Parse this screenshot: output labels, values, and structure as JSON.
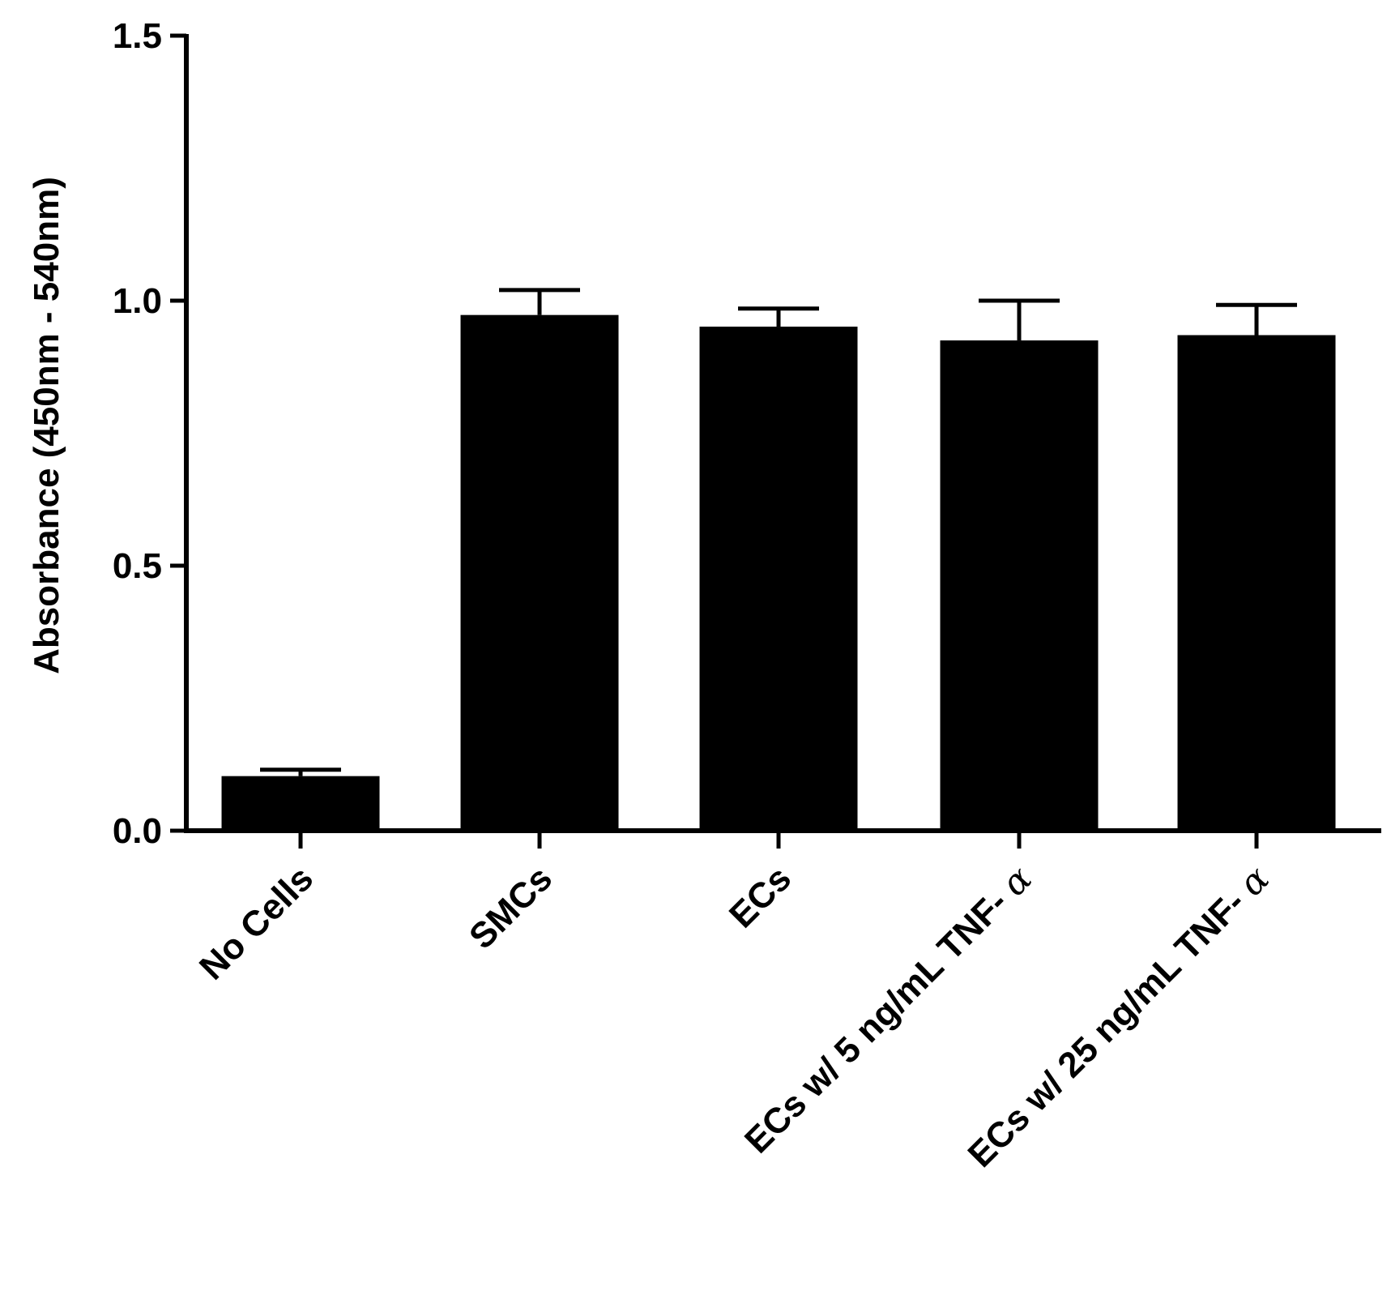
{
  "chart_data": {
    "type": "bar",
    "title": "",
    "xlabel": "",
    "ylabel": "Absorbance (450nm - 540nm)",
    "ylim": [
      0,
      1.5
    ],
    "yticks": [
      "0.0",
      "0.5",
      "1.0",
      "1.5"
    ],
    "grid": false,
    "legend": "none",
    "categories": [
      {
        "label": "No Cells",
        "suffix": ""
      },
      {
        "label": "SMCs",
        "suffix": ""
      },
      {
        "label": "ECs",
        "suffix": ""
      },
      {
        "label": "ECs w/ 5 ng/mL TNF- ",
        "suffix": "α"
      },
      {
        "label": "ECs w/ 25 ng/mL TNF- ",
        "suffix": "α"
      }
    ],
    "values": [
      0.103,
      0.973,
      0.951,
      0.925,
      0.935
    ],
    "errors": [
      0.012,
      0.047,
      0.034,
      0.075,
      0.057
    ],
    "bar_color": "#000000",
    "axis_color": "#000000",
    "background": "#ffffff"
  }
}
